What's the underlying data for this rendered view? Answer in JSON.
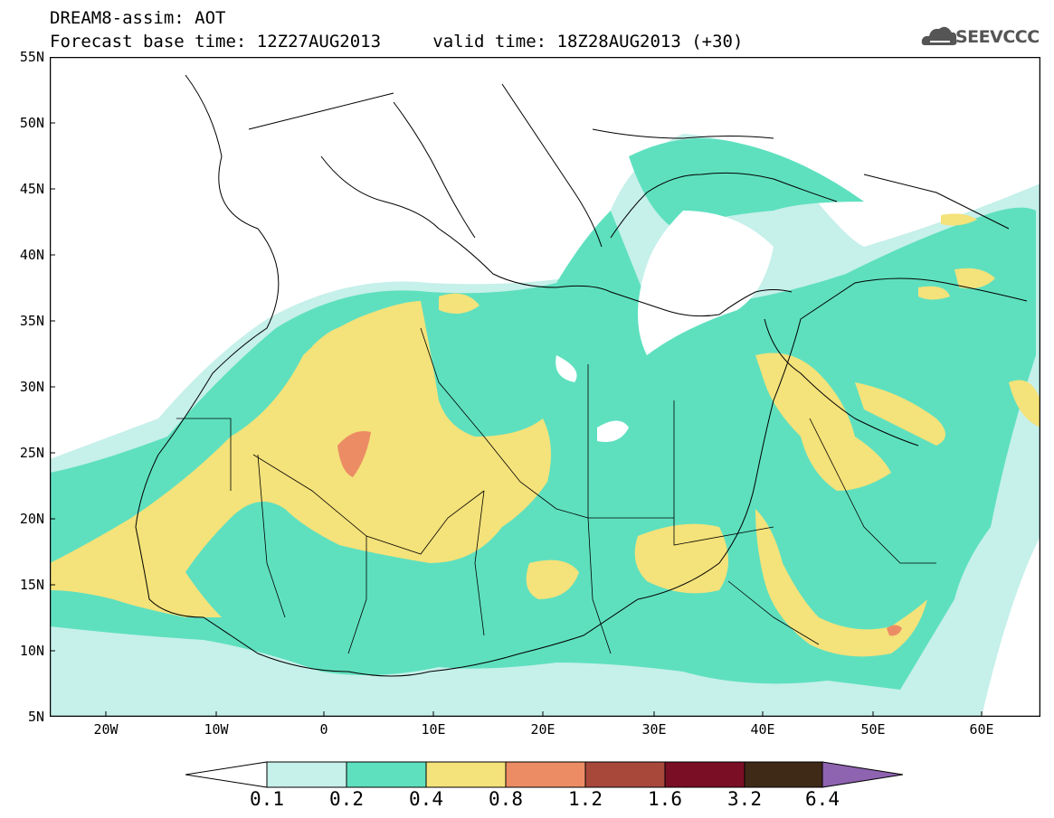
{
  "header": {
    "title_line1": "DREAM8-assim: AOT",
    "base_time": "Forecast base time: 12Z27AUG2013",
    "valid_time": "valid time: 18Z28AUG2013 (+30)",
    "logo_text": "SEEVCCC",
    "logo_icon": "cloud-icon"
  },
  "axes": {
    "lat_labels": [
      "55N",
      "50N",
      "45N",
      "40N",
      "35N",
      "30N",
      "25N",
      "20N",
      "15N",
      "10N",
      "5N"
    ],
    "lon_labels": [
      "20W",
      "10W",
      "0",
      "10E",
      "20E",
      "30E",
      "40E",
      "50E",
      "60E"
    ]
  },
  "colorbar": {
    "labels": [
      "0.1",
      "0.2",
      "0.4",
      "0.8",
      "1.2",
      "1.6",
      "3.2",
      "6.4"
    ],
    "colors": [
      "#c6f0ea",
      "#5ee0bf",
      "#f4e27a",
      "#ec8c65",
      "#a8483b",
      "#7a0e25",
      "#3f2a18",
      "#8e63b0"
    ]
  },
  "map_colors": {
    "level1": "#c6f0ea",
    "level2": "#5ee0bf",
    "level3": "#f4e27a",
    "level4": "#ec8c65"
  }
}
